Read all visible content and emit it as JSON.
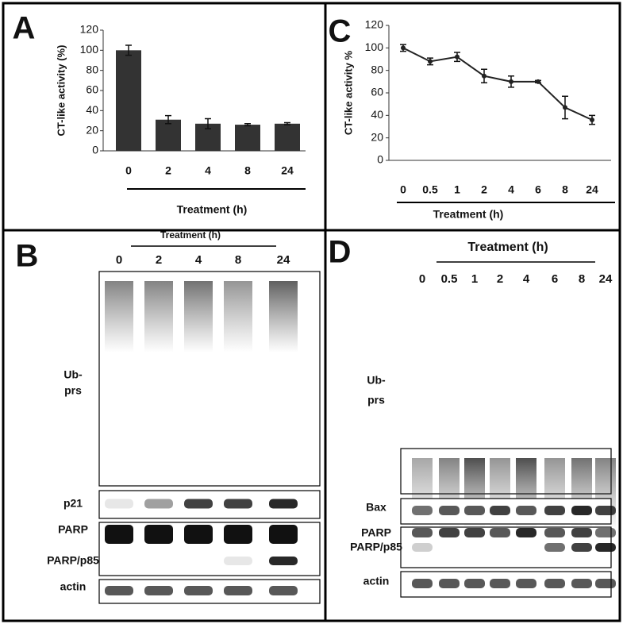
{
  "chart_data": [
    {
      "type": "bar",
      "panel": "A",
      "y_label": "CT-like activity  (%)",
      "x_label": "Treatment (h)",
      "categories": [
        "0",
        "2",
        "4",
        "8",
        "24"
      ],
      "values": [
        100,
        31,
        27,
        26,
        27
      ],
      "errors": [
        5,
        4,
        5,
        1,
        1
      ],
      "color": "#333333",
      "ylim": [
        0,
        120
      ],
      "yticks": [
        0,
        20,
        40,
        60,
        80,
        100,
        120
      ]
    },
    {
      "type": "line",
      "panel": "C",
      "y_label": "CT-like activity %",
      "x_label": "Treatment (h)",
      "categories": [
        "0",
        "0.5",
        "1",
        "2",
        "4",
        "6",
        "8",
        "24"
      ],
      "values": [
        100,
        88,
        92,
        75,
        70,
        70,
        47,
        36
      ],
      "errors": [
        3,
        3,
        4,
        6,
        5,
        1,
        10,
        4
      ],
      "color": "#222222",
      "ylim": [
        0,
        120
      ],
      "yticks": [
        0,
        20,
        40,
        60,
        80,
        100,
        120
      ]
    }
  ],
  "blots": [
    {
      "panel": "B",
      "header": "Treatment (h)",
      "lanes": [
        "0",
        "2",
        "4",
        "8",
        "24"
      ],
      "rows": [
        [
          "Ub-",
          "prs"
        ],
        [
          "p21"
        ],
        [
          "PARP",
          "PARP/p85"
        ],
        [
          "actin"
        ]
      ]
    },
    {
      "panel": "D",
      "header": "Treatment (h)",
      "lanes": [
        "0",
        "0.5",
        "1",
        "2",
        "4",
        "6",
        "8",
        "24"
      ],
      "rows": [
        [
          "Ub-",
          "prs"
        ],
        [
          "Bax"
        ],
        [
          "PARP",
          "PARP/p85"
        ],
        [
          "actin"
        ]
      ]
    }
  ]
}
